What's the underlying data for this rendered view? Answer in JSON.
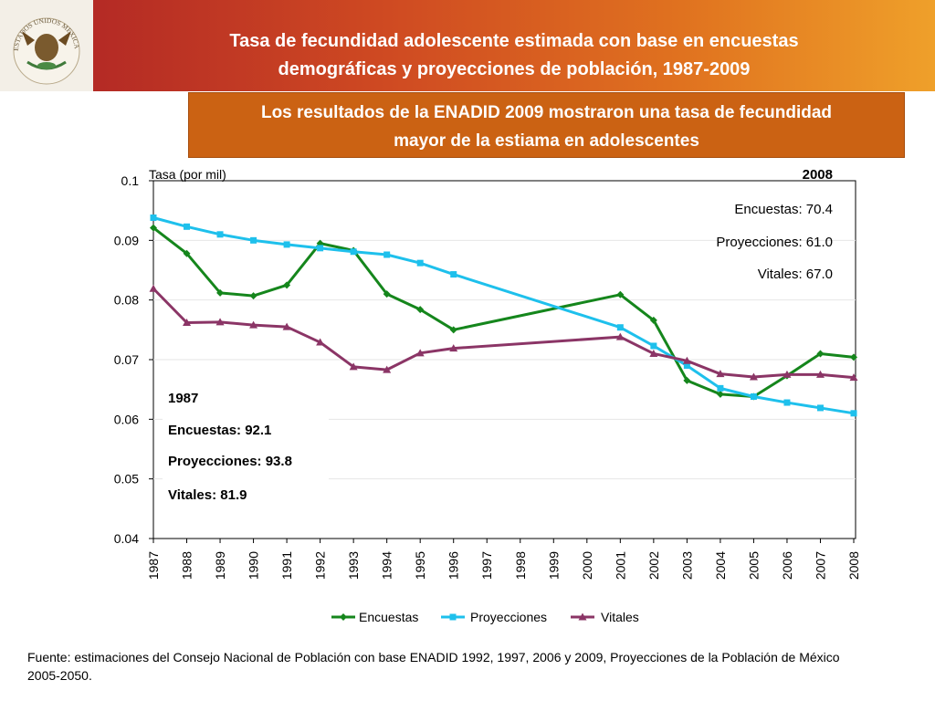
{
  "header": {
    "title": "Tasa de fecundidad adolescente estimada con base en encuestas\ndemográficas y proyecciones de población, 1987-2009",
    "subtitle": "Los resultados de la ENADID 2009 mostraron una tasa de fecundidad\nmayor de la estiama en adolescentes",
    "seal_text": "ESTADOS UNIDOS MEXICANOS"
  },
  "colors": {
    "encuestas": "#15861c",
    "proyecciones": "#1ec0ec",
    "vitales": "#8b3566",
    "title_bar": "#d0472a",
    "subtitle_bar": "#cb6213"
  },
  "chart_data": {
    "type": "line",
    "ylabel": "Tasa (por mil)",
    "xlabel": "",
    "ylim": [
      0.04,
      0.1
    ],
    "yticks": [
      "0.1",
      "0.09",
      "0.08",
      "0.07",
      "0.06",
      "0.05",
      "0.04"
    ],
    "categories": [
      "1987",
      "1988",
      "1989",
      "1990",
      "1991",
      "1992",
      "1993",
      "1994",
      "1995",
      "1996",
      "1997",
      "1998",
      "1999",
      "2000",
      "2001",
      "2002",
      "2003",
      "2004",
      "2005",
      "2006",
      "2007",
      "2008"
    ],
    "grid": true,
    "legend_position": "bottom",
    "series": [
      {
        "name": "Encuestas",
        "marker": "diamond",
        "values": [
          0.0921,
          0.0878,
          0.0812,
          0.0807,
          0.0825,
          0.0895,
          0.0883,
          0.081,
          0.0784,
          0.075,
          null,
          null,
          null,
          null,
          0.0809,
          0.0766,
          0.0665,
          0.0642,
          0.0638,
          0.0673,
          0.071,
          0.0704
        ]
      },
      {
        "name": "Proyecciones",
        "marker": "square",
        "values": [
          0.0938,
          0.0923,
          0.091,
          0.09,
          0.0893,
          0.0887,
          0.0881,
          0.0876,
          0.0862,
          0.0843,
          null,
          null,
          null,
          null,
          0.0754,
          0.0723,
          0.069,
          0.0652,
          0.0638,
          0.0628,
          0.0619,
          0.061
        ]
      },
      {
        "name": "Vitales",
        "marker": "triangle",
        "values": [
          0.0819,
          0.0762,
          0.0763,
          0.0758,
          0.0755,
          0.0729,
          0.0688,
          0.0683,
          0.0711,
          0.0719,
          null,
          null,
          null,
          null,
          0.0738,
          0.071,
          0.0698,
          0.0676,
          0.0671,
          0.0675,
          0.0675,
          0.067
        ]
      }
    ],
    "annotations": {
      "a2008": [
        "2008",
        "Encuestas: 70.4",
        "Proyecciones: 61.0",
        "Vitales: 67.0"
      ],
      "a1987": [
        "1987",
        "Encuestas: 92.1",
        "Proyecciones: 93.8",
        "Vitales: 81.9"
      ]
    }
  },
  "footer": {
    "source": "Fuente: estimaciones del Consejo Nacional de Población con base ENADID 1992, 1997, 2006 y 2009, Proyecciones de la Población de México 2005-2050."
  }
}
